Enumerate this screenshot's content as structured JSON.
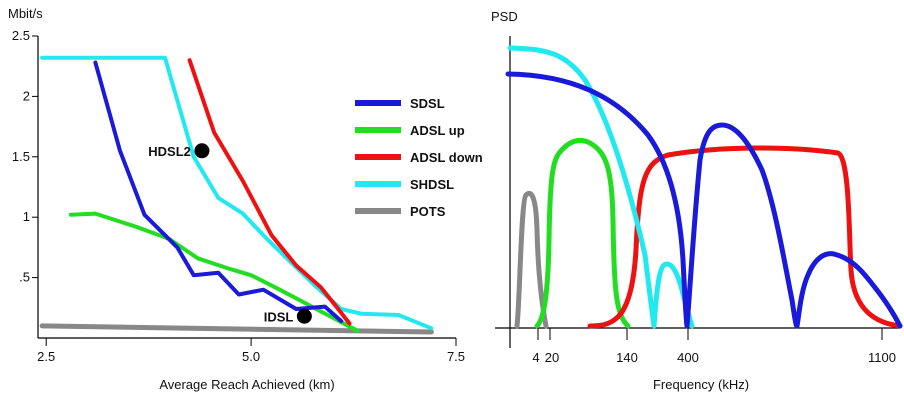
{
  "chart_data": [
    {
      "type": "line",
      "title": "",
      "ylabel": "Mbit/s",
      "xlabel": "Average Reach Achieved (km)",
      "xlim": [
        2.4,
        7.5
      ],
      "ylim": [
        0,
        2.5
      ],
      "xticks": [
        {
          "v": 2.5,
          "label": "2.5"
        },
        {
          "v": 5.0,
          "label": "5.0"
        },
        {
          "v": 7.5,
          "label": "7.5"
        }
      ],
      "yticks": [
        {
          "v": 0.5,
          "label": ".5"
        },
        {
          "v": 1,
          "label": "1"
        },
        {
          "v": 1.5,
          "label": "1.5"
        },
        {
          "v": 2,
          "label": "2"
        },
        {
          "v": 2.5,
          "label": "2.5"
        }
      ],
      "legend_position": "center-right",
      "series": [
        {
          "name": "SDSL",
          "color": "#1a1adb",
          "points": [
            [
              3.1,
              2.28
            ],
            [
              3.4,
              1.55
            ],
            [
              3.7,
              1.02
            ],
            [
              4.1,
              0.75
            ],
            [
              4.3,
              0.52
            ],
            [
              4.6,
              0.54
            ],
            [
              4.85,
              0.36
            ],
            [
              5.15,
              0.4
            ],
            [
              5.55,
              0.24
            ],
            [
              5.9,
              0.26
            ],
            [
              6.1,
              0.14
            ]
          ]
        },
        {
          "name": "ADSL up",
          "color": "#22dd22",
          "points": [
            [
              2.8,
              1.02
            ],
            [
              3.1,
              1.03
            ],
            [
              3.6,
              0.92
            ],
            [
              4.0,
              0.82
            ],
            [
              4.35,
              0.66
            ],
            [
              4.7,
              0.58
            ],
            [
              5.0,
              0.52
            ],
            [
              5.35,
              0.4
            ],
            [
              5.85,
              0.22
            ],
            [
              6.3,
              0.06
            ]
          ]
        },
        {
          "name": "ADSL down",
          "color": "#ee1111",
          "points": [
            [
              4.25,
              2.3
            ],
            [
              4.55,
              1.7
            ],
            [
              4.9,
              1.3
            ],
            [
              5.25,
              0.85
            ],
            [
              5.55,
              0.6
            ],
            [
              5.85,
              0.42
            ],
            [
              6.05,
              0.25
            ],
            [
              6.2,
              0.12
            ]
          ]
        },
        {
          "name": "SHDSL",
          "color": "#22e8f0",
          "points": [
            [
              2.45,
              2.32
            ],
            [
              3.95,
              2.32
            ],
            [
              4.3,
              1.5
            ],
            [
              4.6,
              1.16
            ],
            [
              4.9,
              1.03
            ],
            [
              5.15,
              0.85
            ],
            [
              5.45,
              0.65
            ],
            [
              5.8,
              0.42
            ],
            [
              6.1,
              0.24
            ],
            [
              6.35,
              0.2
            ],
            [
              6.8,
              0.19
            ],
            [
              7.2,
              0.08
            ]
          ]
        },
        {
          "name": "POTS",
          "color": "#888888",
          "points": [
            [
              2.45,
              0.1
            ],
            [
              7.2,
              0.05
            ]
          ]
        }
      ],
      "annotations": [
        {
          "label": "HDSL2",
          "x": 4.4,
          "y": 1.55
        },
        {
          "label": "IDSL",
          "x": 5.65,
          "y": 0.18
        }
      ]
    },
    {
      "type": "line",
      "title": "",
      "ylabel": "PSD",
      "xlabel": "Frequency (kHz)",
      "xticks": [
        {
          "label": "4"
        },
        {
          "label": "20"
        },
        {
          "label": "140"
        },
        {
          "label": "400"
        },
        {
          "label": "1100"
        }
      ],
      "series": [
        {
          "name": "SDSL",
          "color": "#1a1adb"
        },
        {
          "name": "ADSL up",
          "color": "#22dd22"
        },
        {
          "name": "ADSL down",
          "color": "#ee1111"
        },
        {
          "name": "SHDSL",
          "color": "#22e8f0"
        },
        {
          "name": "POTS",
          "color": "#888888"
        }
      ]
    }
  ]
}
